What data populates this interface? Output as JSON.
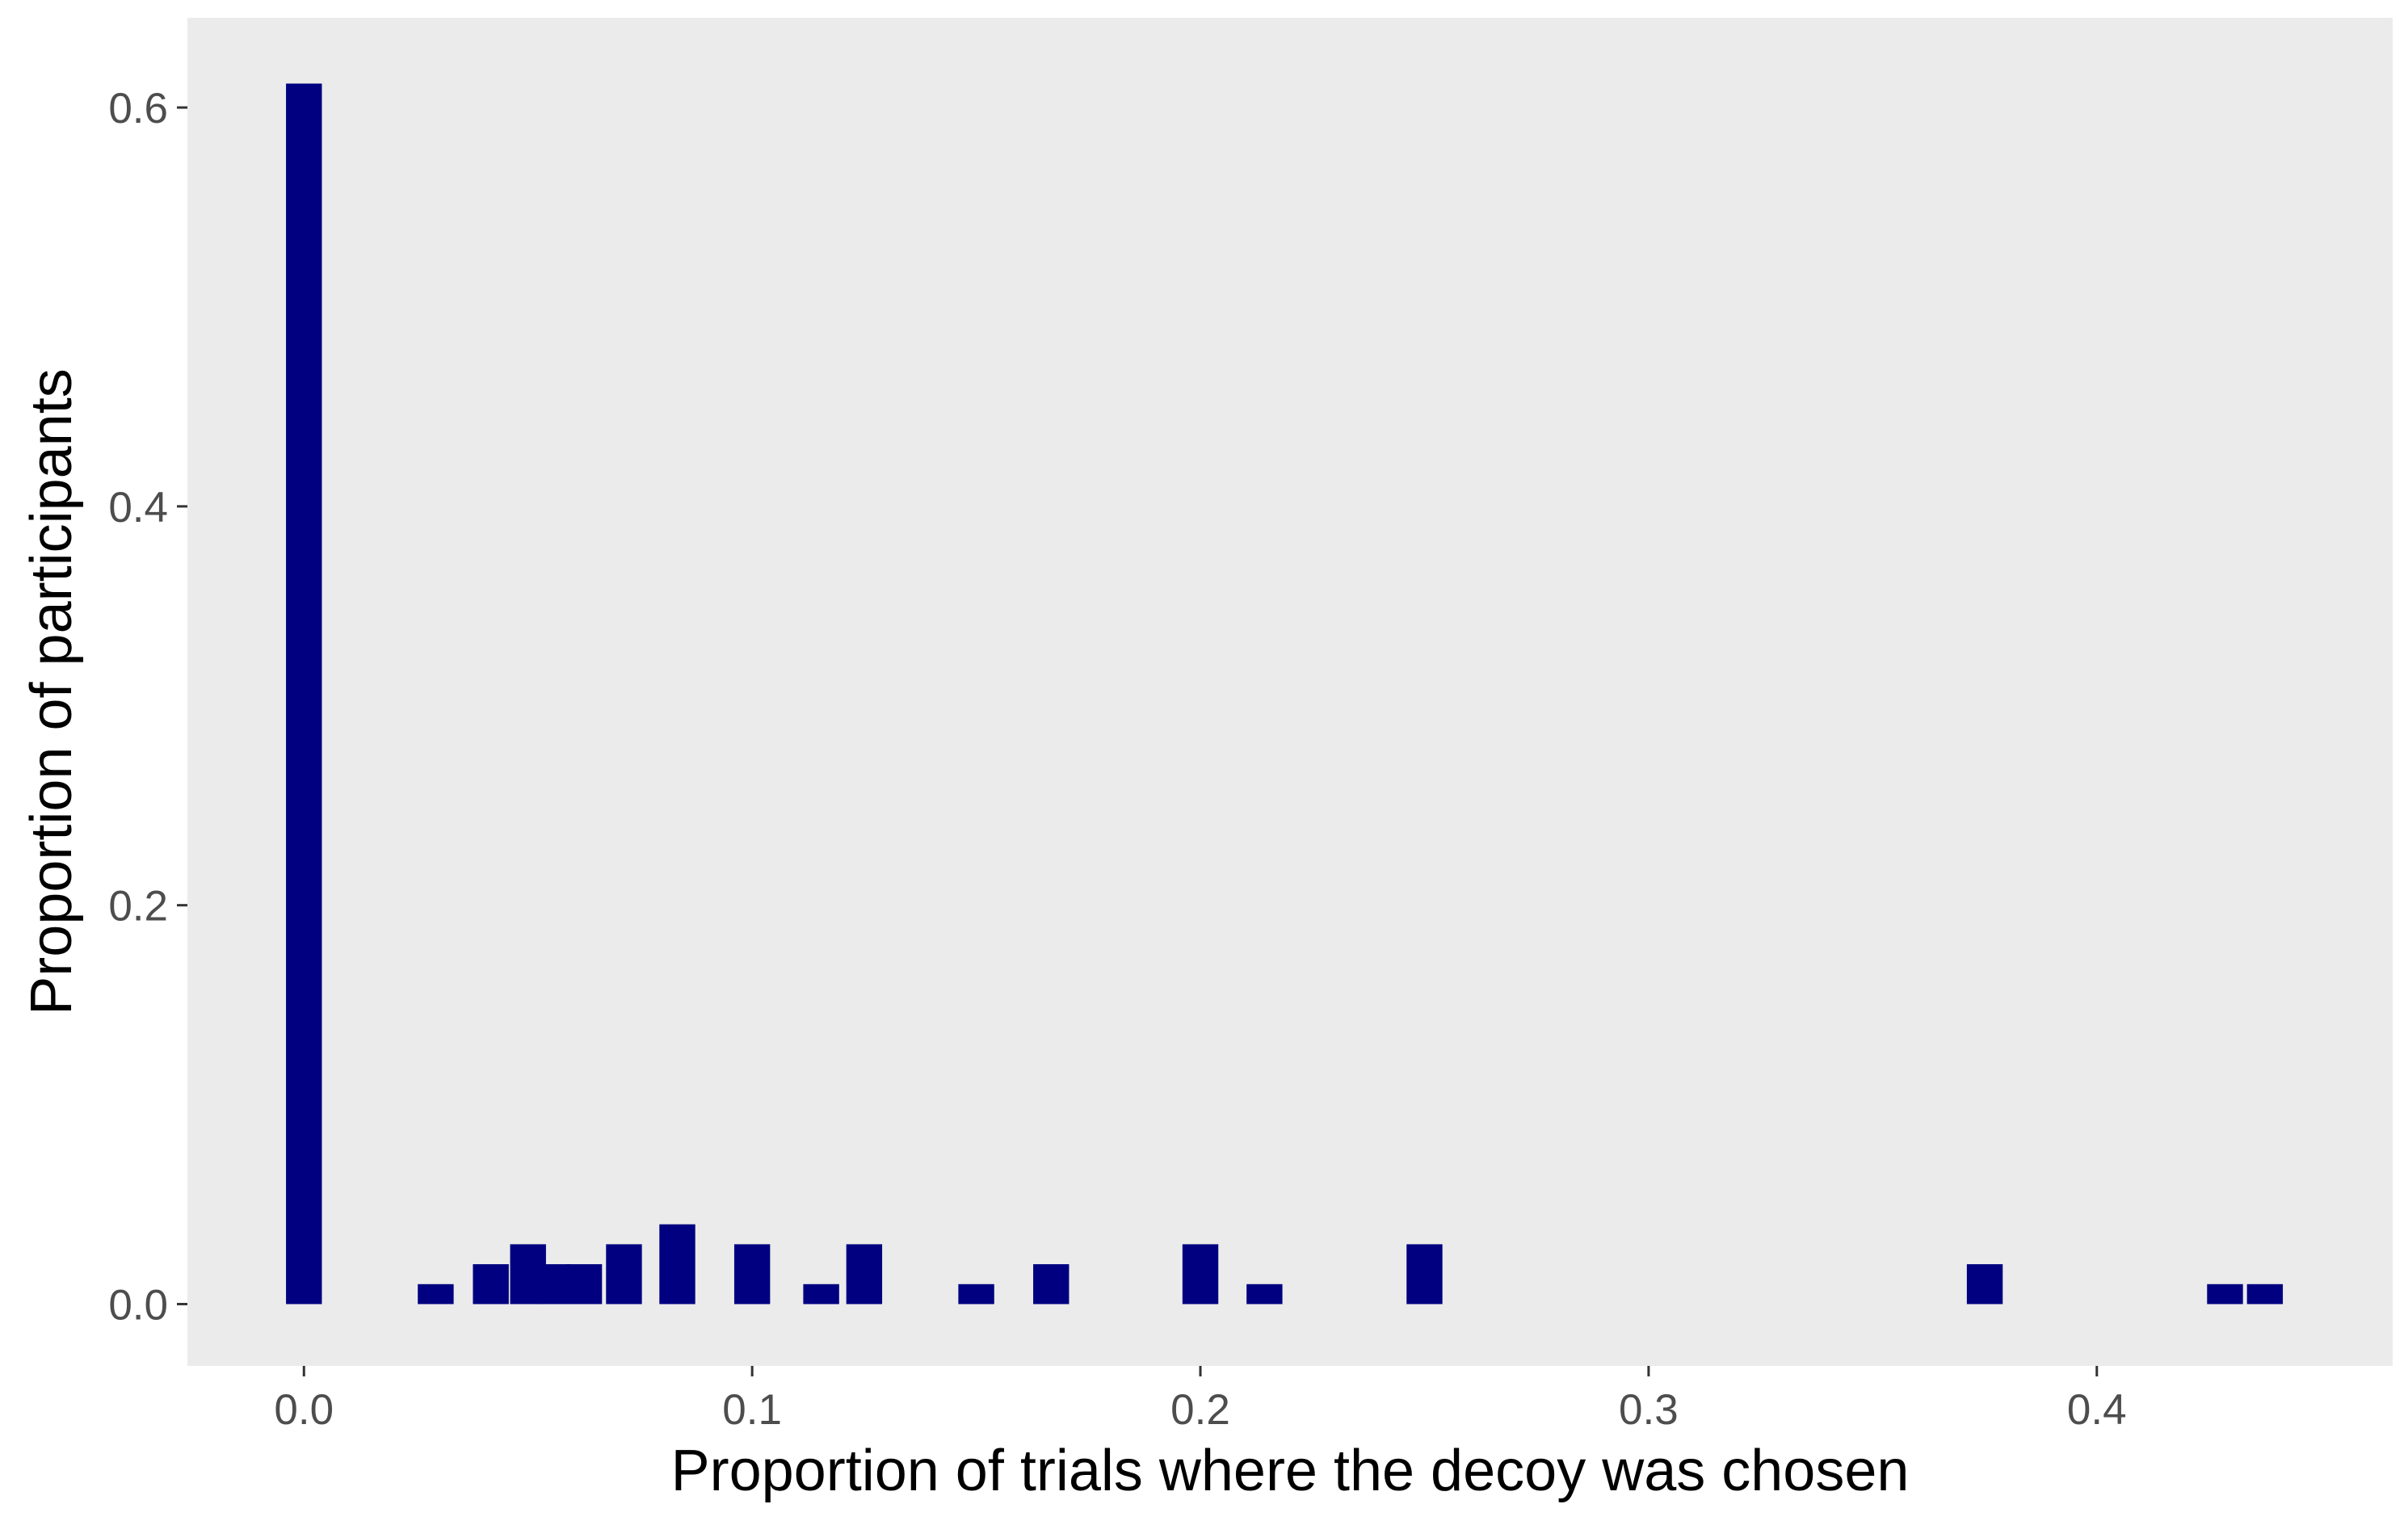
{
  "chart_data": {
    "type": "bar",
    "title": "",
    "xlabel": "Proportion of trials where the decoy was chosen",
    "ylabel": "Proportion of participants",
    "xlim": [
      -0.026,
      0.466
    ],
    "ylim": [
      -0.031,
      0.645
    ],
    "xticks": [
      0.0,
      0.1,
      0.2,
      0.3,
      0.4
    ],
    "xtick_labels": [
      "0.0",
      "0.1",
      "0.2",
      "0.3",
      "0.4"
    ],
    "yticks": [
      0.0,
      0.2,
      0.4,
      0.6
    ],
    "ytick_labels": [
      "0.0",
      "0.2",
      "0.4",
      "0.6"
    ],
    "bar_width": 0.008,
    "grid": false,
    "legend": "none",
    "series": [
      {
        "x": [
          0.0,
          0.0294,
          0.0417,
          0.05,
          0.0556,
          0.0625,
          0.0714,
          0.0833,
          0.1,
          0.1154,
          0.125,
          0.15,
          0.1667,
          0.2,
          0.2143,
          0.25,
          0.375,
          0.4286,
          0.4375
        ],
        "values": [
          0.612,
          0.01,
          0.02,
          0.03,
          0.02,
          0.02,
          0.03,
          0.04,
          0.03,
          0.01,
          0.03,
          0.01,
          0.02,
          0.03,
          0.01,
          0.03,
          0.02,
          0.01,
          0.01
        ]
      }
    ],
    "colors": {
      "bar": "#000080",
      "panel": "#EBEBEB",
      "tick_label": "#4D4D4D",
      "tick_mark": "#333333"
    }
  }
}
